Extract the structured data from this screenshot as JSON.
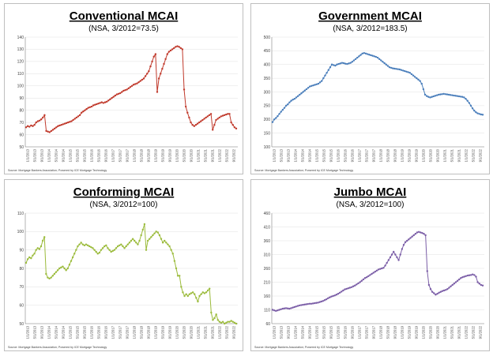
{
  "chart_data": [
    {
      "type": "line",
      "title": "Conventional MCAI",
      "subtitle": "(NSA, 3/2012=73.5)",
      "source": "Source: Mortgage Bankers Association; Powered by ICE Mortgage Technology",
      "color": "#c0392b",
      "ylim": [
        50,
        140
      ],
      "yticks": [
        50,
        60,
        70,
        80,
        90,
        100,
        110,
        120,
        130,
        140
      ],
      "x_start": "2013-01",
      "x_end": "2022-12",
      "xtick_labels": [
        "1/1/2013",
        "5/1/2013",
        "9/1/2013",
        "1/1/2014",
        "5/1/2014",
        "9/1/2014",
        "1/1/2015",
        "5/1/2015",
        "9/1/2015",
        "1/1/2016",
        "5/1/2016",
        "9/1/2016",
        "1/1/2017",
        "5/1/2017",
        "9/1/2017",
        "1/1/2018",
        "5/1/2018",
        "9/1/2018",
        "1/1/2019",
        "5/1/2019",
        "9/1/2019",
        "1/1/2020",
        "5/1/2020",
        "9/1/2020",
        "1/1/2021",
        "5/1/2021",
        "9/1/2021",
        "1/1/2022",
        "5/1/2022",
        "9/1/2022"
      ],
      "values": [
        66,
        67,
        66.5,
        67.5,
        67,
        68,
        70,
        71,
        71.5,
        72.5,
        74,
        76,
        63,
        62.5,
        62,
        63,
        64,
        65,
        66,
        67,
        67.5,
        68,
        68.5,
        69,
        69.5,
        70,
        70.5,
        71,
        72,
        73,
        74,
        75,
        76,
        78,
        79,
        80,
        81,
        82,
        82.5,
        83,
        84,
        84.5,
        85,
        85.5,
        86,
        86.5,
        86,
        86.5,
        87,
        88,
        89,
        90,
        91,
        92,
        93,
        93.5,
        94,
        95,
        96,
        96.5,
        97,
        98,
        99,
        100,
        101,
        101.5,
        102,
        103,
        104,
        105,
        106,
        108,
        110,
        112,
        116,
        120,
        124,
        126,
        95,
        106,
        110,
        114,
        118,
        122,
        126,
        128,
        129,
        130,
        131,
        132,
        132.5,
        132,
        131,
        130,
        97,
        83,
        78,
        74,
        70,
        68,
        67,
        68,
        69,
        70,
        71,
        72,
        73,
        74,
        75,
        76,
        77,
        64,
        68,
        72,
        73,
        74,
        75,
        75.5,
        76,
        76.5,
        77,
        77,
        70,
        68,
        66,
        65
      ]
    },
    {
      "type": "line",
      "title": "Government MCAI",
      "subtitle": "(NSA, 3/2012=183.5)",
      "source": "Source: Mortgage Bankers Association; Powered by ICE Mortgage Technology",
      "color": "#4a7ebb",
      "ylim": [
        100,
        500
      ],
      "yticks": [
        100,
        150,
        200,
        250,
        300,
        350,
        400,
        450,
        500
      ],
      "x_start": "2013-01",
      "x_end": "2022-12",
      "xtick_labels": [
        "1/1/2013",
        "5/1/2013",
        "9/1/2013",
        "1/1/2014",
        "5/1/2014",
        "9/1/2014",
        "1/1/2015",
        "5/1/2015",
        "9/1/2015",
        "1/1/2016",
        "5/1/2016",
        "9/1/2016",
        "1/1/2017",
        "5/1/2017",
        "9/1/2017",
        "1/1/2018",
        "5/1/2018",
        "9/1/2018",
        "1/1/2019",
        "5/1/2019",
        "9/1/2019",
        "1/1/2020",
        "5/1/2020",
        "9/1/2020",
        "1/1/2021",
        "5/1/2021",
        "9/1/2021",
        "1/1/2022",
        "5/1/2022",
        "9/1/2022"
      ],
      "values": [
        190,
        200,
        205,
        212,
        220,
        228,
        235,
        242,
        250,
        255,
        262,
        268,
        272,
        275,
        280,
        285,
        290,
        295,
        300,
        305,
        310,
        315,
        320,
        322,
        324,
        326,
        328,
        330,
        335,
        340,
        350,
        360,
        370,
        380,
        390,
        400,
        398,
        396,
        400,
        402,
        404,
        406,
        405,
        403,
        402,
        404,
        406,
        410,
        415,
        420,
        425,
        430,
        435,
        440,
        442,
        440,
        438,
        436,
        434,
        432,
        430,
        428,
        425,
        420,
        415,
        410,
        405,
        400,
        395,
        390,
        388,
        386,
        385,
        384,
        383,
        382,
        380,
        378,
        376,
        374,
        372,
        370,
        365,
        360,
        355,
        350,
        345,
        340,
        330,
        310,
        290,
        285,
        282,
        280,
        282,
        284,
        286,
        288,
        290,
        291,
        292,
        293,
        292,
        291,
        290,
        289,
        288,
        287,
        286,
        285,
        284,
        283,
        282,
        280,
        275,
        268,
        260,
        250,
        240,
        232,
        226,
        222,
        220,
        218,
        217
      ]
    },
    {
      "type": "line",
      "title": "Conforming MCAI",
      "subtitle": "(NSA, 3/2012=100)",
      "source": "Source: Mortgage Bankers Association; Powered by ICE Mortgage Technology",
      "color": "#9bbb3b",
      "ylim": [
        50,
        110
      ],
      "yticks": [
        50,
        60,
        70,
        80,
        90,
        100,
        110
      ],
      "x_start": "2013-01",
      "x_end": "2022-12",
      "xtick_labels": [
        "1/1/2013",
        "5/1/2013",
        "9/1/2013",
        "1/1/2014",
        "5/1/2014",
        "9/1/2014",
        "1/1/2015",
        "5/1/2015",
        "9/1/2015",
        "1/1/2016",
        "5/1/2016",
        "9/1/2016",
        "1/1/2017",
        "5/1/2017",
        "9/1/2017",
        "1/1/2018",
        "5/1/2018",
        "9/1/2018",
        "1/1/2019",
        "5/1/2019",
        "9/1/2019",
        "1/1/2020",
        "5/1/2020",
        "9/1/2020",
        "1/1/2021",
        "5/1/2021",
        "9/1/2021",
        "1/1/2022",
        "5/1/2022",
        "9/1/2022"
      ],
      "values": [
        83,
        85,
        86,
        85.5,
        87,
        88,
        90,
        91,
        90.5,
        92,
        95,
        97,
        77,
        75,
        74.5,
        75,
        76,
        77,
        78,
        79,
        80,
        80.5,
        81,
        80,
        79,
        80,
        82,
        84,
        86,
        88,
        90,
        92,
        93,
        94,
        93,
        92.5,
        93,
        92.5,
        92,
        91.5,
        91,
        90,
        89,
        88,
        88.5,
        90,
        91,
        92,
        92.5,
        91,
        90,
        89,
        89.5,
        90,
        91,
        92,
        92.5,
        93,
        92,
        91,
        92,
        93,
        94,
        95,
        96,
        95,
        94,
        93,
        95,
        98,
        101,
        104,
        90,
        95,
        96,
        97,
        98,
        99,
        100,
        99.5,
        98,
        96,
        94,
        95,
        94,
        93,
        92,
        90,
        88,
        84,
        80,
        76,
        76,
        70,
        67,
        65,
        66,
        65,
        66,
        66.5,
        67,
        66,
        64,
        62,
        65,
        66,
        67,
        66.5,
        67,
        68,
        69,
        56,
        52,
        53,
        55,
        52,
        51,
        50.5,
        51,
        50,
        50.5,
        51,
        51,
        51.5,
        51,
        50.5,
        50
      ]
    },
    {
      "type": "line",
      "title": "Jumbo MCAI",
      "subtitle": "(NSA, 3/2012=100)",
      "source": "Source: Mortgage Bankers Association; Powered by ICE Mortgage Technology",
      "color": "#7b5ea7",
      "ylim": [
        60,
        460
      ],
      "yticks": [
        60,
        110,
        160,
        210,
        260,
        310,
        360,
        410,
        460
      ],
      "x_start": "2013-01",
      "x_end": "2022-12",
      "xtick_labels": [
        "1/1/2013",
        "5/1/2013",
        "9/1/2013",
        "1/1/2014",
        "5/1/2014",
        "9/1/2014",
        "1/1/2015",
        "5/1/2015",
        "9/1/2015",
        "1/1/2016",
        "5/1/2016",
        "9/1/2016",
        "1/1/2017",
        "5/1/2017",
        "9/1/2017",
        "1/1/2018",
        "5/1/2018",
        "9/1/2018",
        "1/1/2019",
        "5/1/2019",
        "9/1/2019",
        "1/1/2020",
        "5/1/2020",
        "9/1/2020",
        "1/1/2021",
        "5/1/2021",
        "9/1/2021",
        "1/1/2022",
        "5/1/2022",
        "9/1/2022"
      ],
      "values": [
        110,
        108,
        106,
        108,
        110,
        112,
        114,
        115,
        116,
        115,
        114,
        116,
        118,
        120,
        122,
        124,
        126,
        127,
        128,
        129,
        130,
        131,
        132,
        132,
        133,
        134,
        135,
        136,
        138,
        140,
        142,
        145,
        148,
        152,
        155,
        158,
        160,
        162,
        165,
        168,
        172,
        176,
        180,
        184,
        186,
        188,
        190,
        192,
        195,
        198,
        202,
        206,
        210,
        215,
        220,
        225,
        228,
        232,
        236,
        240,
        244,
        248,
        252,
        256,
        258,
        260,
        262,
        270,
        280,
        290,
        300,
        310,
        320,
        310,
        300,
        290,
        310,
        330,
        345,
        355,
        360,
        365,
        370,
        375,
        380,
        385,
        390,
        392,
        390,
        388,
        385,
        380,
        250,
        200,
        185,
        175,
        170,
        165,
        168,
        172,
        175,
        178,
        180,
        182,
        185,
        190,
        195,
        200,
        205,
        210,
        215,
        220,
        225,
        228,
        230,
        232,
        234,
        235,
        236,
        238,
        236,
        230,
        210,
        205,
        200,
        198
      ]
    }
  ]
}
